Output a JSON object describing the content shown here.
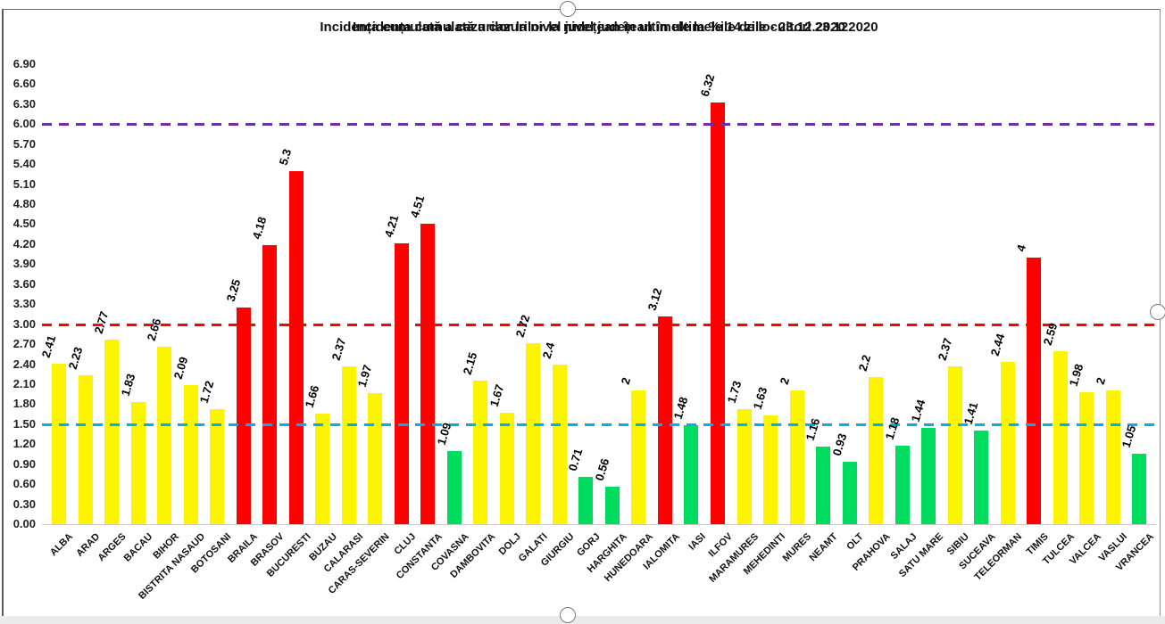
{
  "title": {
    "full_readable": "Incidența cumulată a cazurilor la nivel județean în ultimele 14 zile la %ile de locuitori - 23.12.2020",
    "overlay_a": "Incidența cumulată a cazurilor la nivel județean în ultimele 14 zile - 23.12.2020",
    "overlay_b": "Incidența cumulată a cazurilor la nivel județean în ultimele la %ile de locuitori 23.122020"
  },
  "chart_data": {
    "type": "bar",
    "title": "Incidența cumulată a cazurilor la nivel județean în ultimele 14 zile la %ile de locuitori - 23.12.2020",
    "xlabel": "",
    "ylabel": "",
    "ylim": [
      0,
      6.9
    ],
    "ytick_step": 0.3,
    "grid": false,
    "legend": "none",
    "categories": [
      "ALBA",
      "ARAD",
      "ARGES",
      "BACAU",
      "BIHOR",
      "BISTRITA NASAUD",
      "BOTOSANI",
      "BRAILA",
      "BRASOV",
      "BUCURESTI",
      "BUZAU",
      "CALARASI",
      "CARAS-SEVERIN",
      "CLUJ",
      "CONSTANTA",
      "COVASNA",
      "DAMBOVITA",
      "DOLJ",
      "GALATI",
      "GIURGIU",
      "GORJ",
      "HARGHITA",
      "HUNEDOARA",
      "IALOMITA",
      "IASI",
      "ILFOV",
      "MARAMURES",
      "MEHEDINTI",
      "MURES",
      "NEAMT",
      "OLT",
      "PRAHOVA",
      "SALAJ",
      "SATU MARE",
      "SIBIU",
      "SUCEAVA",
      "TELEORMAN",
      "TIMIS",
      "TULCEA",
      "VALCEA",
      "VASLUI",
      "VRANCEA"
    ],
    "values": [
      2.41,
      2.23,
      2.77,
      1.83,
      2.66,
      2.09,
      1.72,
      3.25,
      4.18,
      5.3,
      1.66,
      2.37,
      1.97,
      4.21,
      4.51,
      1.09,
      2.15,
      1.67,
      2.72,
      2.4,
      0.71,
      0.56,
      2,
      3.12,
      1.48,
      6.32,
      1.73,
      1.63,
      2,
      1.16,
      0.93,
      2.2,
      1.18,
      1.44,
      2.37,
      1.41,
      2.44,
      4,
      2.59,
      1.98,
      2,
      1.05
    ],
    "bar_color_rule": {
      "green_below": 1.5,
      "yellow_below": 3.0,
      "red_at_or_above": 3.0
    },
    "palette": {
      "green": "#00DC5F",
      "yellow": "#FCF400",
      "red": "#FE0000"
    },
    "reference_lines": [
      {
        "value": 1.5,
        "color": "#00AEEF",
        "style": "dashed"
      },
      {
        "value": 3.0,
        "color": "#FF0000",
        "style": "dashed"
      },
      {
        "value": 6.0,
        "color": "#7030A0",
        "style": "dashed"
      }
    ]
  }
}
